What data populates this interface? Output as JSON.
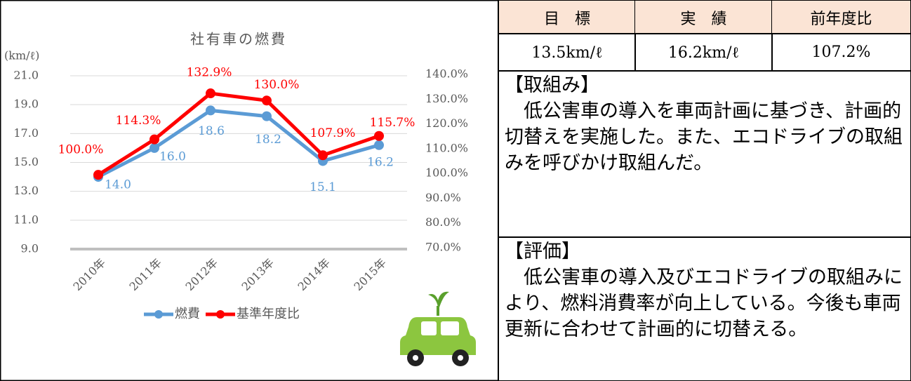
{
  "chart_data": {
    "type": "line",
    "title": "社有車の燃費",
    "y_label": "(km/ℓ)",
    "categories": [
      "2010年",
      "2011年",
      "2012年",
      "2013年",
      "2014年",
      "2015年"
    ],
    "series": [
      {
        "name": "燃費",
        "color": "#5b9bd5",
        "values": [
          14.0,
          16.0,
          18.6,
          18.2,
          15.1,
          16.2
        ],
        "value_labels": [
          "14.0",
          "16.0",
          "18.6",
          "18.2",
          "15.1",
          "16.2"
        ]
      },
      {
        "name": "基準年度比",
        "color": "#ff0000",
        "axis": "y2",
        "values": [
          100.0,
          114.3,
          132.9,
          130.0,
          107.9,
          115.7
        ],
        "value_labels": [
          "100.0%",
          "114.3%",
          "132.9%",
          "130.0%",
          "107.9%",
          "115.7%"
        ]
      }
    ],
    "ylim": [
      9,
      21
    ],
    "yticks": [
      {
        "value": 9,
        "label": "9.0"
      },
      {
        "value": 11,
        "label": "11.0"
      },
      {
        "value": 13,
        "label": "13.0"
      },
      {
        "value": 15,
        "label": "15.0"
      },
      {
        "value": 17,
        "label": "17.0"
      },
      {
        "value": 19,
        "label": "19.0"
      },
      {
        "value": 21,
        "label": "21.0"
      }
    ],
    "y2lim": [
      70,
      140
    ],
    "y2ticks": [
      {
        "value": 70,
        "label": "70.0%"
      },
      {
        "value": 80,
        "label": "80.0%"
      },
      {
        "value": 90,
        "label": "90.0%"
      },
      {
        "value": 100,
        "label": "100.0%"
      },
      {
        "value": 110,
        "label": "110.0%"
      },
      {
        "value": 120,
        "label": "120.0%"
      },
      {
        "value": 130,
        "label": "130.0%"
      },
      {
        "value": 140,
        "label": "140.0%"
      }
    ],
    "grid": true,
    "legend": "bottom"
  },
  "table": {
    "headers": [
      "目　標",
      "実　績",
      "前年度比"
    ],
    "rows": [
      [
        "13.5km/ℓ",
        "16.2km/ℓ",
        "107.2%"
      ]
    ]
  },
  "sections": [
    {
      "heading": "【取組み】",
      "text": "低公害車の導入を車両計画に基づき、計画的切替えを実施した。また、エコドライブの取組みを呼びかけ取組んだ。"
    },
    {
      "heading": "【評価】",
      "text": "低公害車の導入及びエコドライブの取組みにより、燃料消費率が向上している。今後も車両更新に合わせて計画的に切替える。"
    }
  ]
}
